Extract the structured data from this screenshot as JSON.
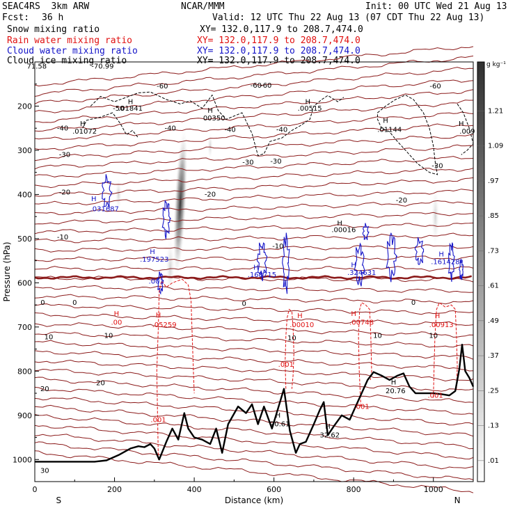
{
  "header": {
    "model": "SEAC4RS  3km ARW",
    "center": "NCAR/MMM",
    "init": "Init: 00 UTC Wed 21 Aug 13",
    "fcst_label": "Fcst:",
    "fcst_value": "36 h",
    "valid": "Valid: 12 UTC Thu 22 Aug 13 (07 CDT Thu 22 Aug 13)"
  },
  "fields": [
    {
      "name": "Snow mixing ratio",
      "xy": "XY= 132.0,117.9 to 208.7,474.0",
      "color": "#000000"
    },
    {
      "name": "Rain water mixing ratio",
      "xy": "XY= 132.0,117.9 to 208.7,474.0",
      "color": "#e01010"
    },
    {
      "name": "Cloud water mixing ratio",
      "xy": "XY= 132.0,117.9 to 208.7,474.0",
      "color": "#1414c8"
    },
    {
      "name": "Cloud ice mixing ratio",
      "xy": "XY= 132.0,117.9 to 208.7,474.0",
      "color": "#000000"
    }
  ],
  "chart_data": {
    "type": "cross-section",
    "xlabel": "Distance (km)",
    "ylabel": "Pressure (hPa)",
    "xlim": [
      0,
      1100
    ],
    "ylim": [
      1050,
      100
    ],
    "x_ticks": [
      0,
      200,
      400,
      600,
      800,
      1000
    ],
    "y_ticks": [
      200,
      300,
      400,
      500,
      600,
      700,
      800,
      900,
      1000
    ],
    "left_end": "S",
    "right_end": "N",
    "colorbar": {
      "unit": "g kg⁻¹",
      "levels": [
        "1.21",
        "1.09",
        ".97",
        ".85",
        ".73",
        ".61",
        ".49",
        ".37",
        ".25",
        ".13",
        ".01"
      ]
    },
    "temperature_contours": [
      {
        "label": "-70.99",
        "p": 103
      },
      {
        "label": "-60",
        "p": 143
      },
      {
        "label": "-50",
        "p": 177
      },
      {
        "label": "-40",
        "p": 225
      },
      {
        "label": "-30",
        "p": 275
      },
      {
        "label": "-20",
        "p": 375
      },
      {
        "label": "-10",
        "p": 473
      },
      {
        "label": "0",
        "p": 590
      },
      {
        "label": "10",
        "p": 690
      },
      {
        "label": "20",
        "p": 790
      }
    ],
    "annotations": [
      {
        "label": "71.58",
        "x": 5,
        "p": 115,
        "color": "#000000"
      },
      {
        "label": "-70.99",
        "x": 170,
        "p": 115,
        "color": "#000000"
      },
      {
        "label": "H",
        "x": 240,
        "p": 195,
        "color": "#000000"
      },
      {
        "label": ".01841",
        "x": 240,
        "p": 210,
        "color": "#000000"
      },
      {
        "label": "-50",
        "x": 210,
        "p": 210,
        "color": "#000000"
      },
      {
        "label": "-60",
        "x": 320,
        "p": 160,
        "color": "#000000"
      },
      {
        "label": "-60",
        "x": 555,
        "p": 158,
        "color": "#000000"
      },
      {
        "label": "-60",
        "x": 580,
        "p": 158,
        "color": "#000000"
      },
      {
        "label": "-60",
        "x": 1005,
        "p": 160,
        "color": "#000000"
      },
      {
        "label": "H",
        "x": 440,
        "p": 215,
        "color": "#000000"
      },
      {
        "label": "00350",
        "x": 450,
        "p": 232,
        "color": "#000000"
      },
      {
        "label": "H",
        "x": 685,
        "p": 195,
        "color": "#000000"
      },
      {
        "label": ".00515",
        "x": 690,
        "p": 210,
        "color": "#000000"
      },
      {
        "label": "H",
        "x": 120,
        "p": 245,
        "color": "#000000"
      },
      {
        "label": ".01072",
        "x": 125,
        "p": 262,
        "color": "#000000"
      },
      {
        "label": "-40",
        "x": 70,
        "p": 255,
        "color": "#000000"
      },
      {
        "label": "-40",
        "x": 340,
        "p": 255,
        "color": "#000000"
      },
      {
        "label": "-40",
        "x": 490,
        "p": 258,
        "color": "#000000"
      },
      {
        "label": "-40",
        "x": 620,
        "p": 258,
        "color": "#000000"
      },
      {
        "label": "H",
        "x": 880,
        "p": 238,
        "color": "#000000"
      },
      {
        "label": ".01144",
        "x": 890,
        "p": 258,
        "color": "#000000"
      },
      {
        "label": "H",
        "x": 1070,
        "p": 245,
        "color": "#000000"
      },
      {
        "label": ".009",
        "x": 1085,
        "p": 262,
        "color": "#000000"
      },
      {
        "label": "-30",
        "x": 75,
        "p": 315,
        "color": "#000000"
      },
      {
        "label": "-30",
        "x": 535,
        "p": 332,
        "color": "#000000"
      },
      {
        "label": "-30",
        "x": 605,
        "p": 330,
        "color": "#000000"
      },
      {
        "label": "-30",
        "x": 1010,
        "p": 340,
        "color": "#000000"
      },
      {
        "label": "-20",
        "x": 75,
        "p": 400,
        "color": "#000000"
      },
      {
        "label": "-20",
        "x": 440,
        "p": 405,
        "color": "#000000"
      },
      {
        "label": "-20",
        "x": 920,
        "p": 418,
        "color": "#000000"
      },
      {
        "label": "H",
        "x": 148,
        "p": 415,
        "color": "#1414c8"
      },
      {
        "label": ".031687",
        "x": 175,
        "p": 438,
        "color": "#1414c8"
      },
      {
        "label": "H",
        "x": 765,
        "p": 470,
        "color": "#000000"
      },
      {
        "label": ".00016",
        "x": 775,
        "p": 485,
        "color": "#000000"
      },
      {
        "label": "-10",
        "x": 70,
        "p": 502,
        "color": "#000000"
      },
      {
        "label": "-10",
        "x": 610,
        "p": 522,
        "color": "#000000"
      },
      {
        "label": "H",
        "x": 295,
        "p": 535,
        "color": "#1414c8"
      },
      {
        "label": ".197523",
        "x": 300,
        "p": 552,
        "color": "#1414c8"
      },
      {
        "label": "H",
        "x": 555,
        "p": 570,
        "color": "#1414c8"
      },
      {
        "label": ".168715",
        "x": 570,
        "p": 587,
        "color": "#1414c8"
      },
      {
        "label": "H",
        "x": 800,
        "p": 565,
        "color": "#1414c8"
      },
      {
        "label": ".324631",
        "x": 820,
        "p": 582,
        "color": "#1414c8"
      },
      {
        "label": "H",
        "x": 1020,
        "p": 540,
        "color": "#1414c8"
      },
      {
        "label": ".161428",
        "x": 1030,
        "p": 558,
        "color": "#1414c8"
      },
      {
        "label": ".001",
        "x": 305,
        "p": 602,
        "color": "#1414c8"
      },
      {
        "label": "0",
        "x": 20,
        "p": 650,
        "color": "#000000"
      },
      {
        "label": "0",
        "x": 100,
        "p": 650,
        "color": "#000000"
      },
      {
        "label": "0",
        "x": 525,
        "p": 652,
        "color": "#000000"
      },
      {
        "label": "0",
        "x": 950,
        "p": 650,
        "color": "#000000"
      },
      {
        "label": "H",
        "x": 205,
        "p": 675,
        "color": "#e01010"
      },
      {
        "label": ".00",
        "x": 205,
        "p": 695,
        "color": "#e01010"
      },
      {
        "label": "H",
        "x": 310,
        "p": 678,
        "color": "#e01010"
      },
      {
        "label": ".05259",
        "x": 325,
        "p": 700,
        "color": "#e01010"
      },
      {
        "label": "H",
        "x": 665,
        "p": 680,
        "color": "#e01010"
      },
      {
        "label": ".00010",
        "x": 670,
        "p": 700,
        "color": "#e01010"
      },
      {
        "label": "H",
        "x": 800,
        "p": 675,
        "color": "#e01010"
      },
      {
        "label": ".00748",
        "x": 820,
        "p": 695,
        "color": "#e01010"
      },
      {
        "label": "H",
        "x": 1010,
        "p": 680,
        "color": "#e01010"
      },
      {
        "label": ".00913",
        "x": 1020,
        "p": 700,
        "color": "#e01010"
      },
      {
        "label": "10",
        "x": 35,
        "p": 728,
        "color": "#000000"
      },
      {
        "label": "10",
        "x": 185,
        "p": 725,
        "color": "#000000"
      },
      {
        "label": "10",
        "x": 645,
        "p": 730,
        "color": "#000000"
      },
      {
        "label": "10",
        "x": 860,
        "p": 725,
        "color": "#000000"
      },
      {
        "label": "10",
        "x": 1000,
        "p": 725,
        "color": "#000000"
      },
      {
        "label": ".001",
        "x": 630,
        "p": 790,
        "color": "#e01010"
      },
      {
        "label": "20",
        "x": 165,
        "p": 832,
        "color": "#000000"
      },
      {
        "label": "20",
        "x": 25,
        "p": 845,
        "color": "#000000"
      },
      {
        "label": "H",
        "x": 900,
        "p": 830,
        "color": "#000000"
      },
      {
        "label": "20.76",
        "x": 905,
        "p": 850,
        "color": "#000000"
      },
      {
        "label": ".001",
        "x": 1005,
        "p": 860,
        "color": "#e01010"
      },
      {
        "label": ".001",
        "x": 820,
        "p": 885,
        "color": "#e01010"
      },
      {
        "label": ".001",
        "x": 310,
        "p": 915,
        "color": "#e01010"
      },
      {
        "label": "H",
        "x": 610,
        "p": 905,
        "color": "#000000"
      },
      {
        "label": "20.61",
        "x": 615,
        "p": 925,
        "color": "#000000"
      },
      {
        "label": "H",
        "x": 735,
        "p": 930,
        "color": "#000000"
      },
      {
        "label": "32.62",
        "x": 740,
        "p": 950,
        "color": "#000000"
      },
      {
        "label": "30",
        "x": 25,
        "p": 1030,
        "color": "#000000"
      }
    ],
    "terrain_p": [
      [
        0,
        1005
      ],
      [
        150,
        1005
      ],
      [
        180,
        1002
      ],
      [
        210,
        990
      ],
      [
        240,
        975
      ],
      [
        260,
        970
      ],
      [
        275,
        972
      ],
      [
        290,
        965
      ],
      [
        300,
        975
      ],
      [
        312,
        1000
      ],
      [
        330,
        960
      ],
      [
        345,
        930
      ],
      [
        360,
        955
      ],
      [
        375,
        895
      ],
      [
        385,
        930
      ],
      [
        400,
        950
      ],
      [
        420,
        955
      ],
      [
        440,
        965
      ],
      [
        455,
        930
      ],
      [
        470,
        985
      ],
      [
        485,
        920
      ],
      [
        510,
        880
      ],
      [
        530,
        895
      ],
      [
        545,
        875
      ],
      [
        560,
        920
      ],
      [
        575,
        880
      ],
      [
        595,
        930
      ],
      [
        610,
        885
      ],
      [
        625,
        840
      ],
      [
        640,
        935
      ],
      [
        655,
        985
      ],
      [
        665,
        965
      ],
      [
        680,
        960
      ],
      [
        700,
        920
      ],
      [
        715,
        888
      ],
      [
        725,
        870
      ],
      [
        735,
        945
      ],
      [
        750,
        925
      ],
      [
        770,
        900
      ],
      [
        790,
        910
      ],
      [
        810,
        870
      ],
      [
        835,
        820
      ],
      [
        850,
        802
      ],
      [
        870,
        810
      ],
      [
        890,
        820
      ],
      [
        910,
        810
      ],
      [
        925,
        805
      ],
      [
        940,
        835
      ],
      [
        955,
        850
      ],
      [
        975,
        850
      ],
      [
        1000,
        850
      ],
      [
        1020,
        852
      ],
      [
        1040,
        855
      ],
      [
        1055,
        845
      ],
      [
        1065,
        795
      ],
      [
        1072,
        740
      ],
      [
        1080,
        800
      ],
      [
        1090,
        815
      ],
      [
        1100,
        835
      ]
    ]
  },
  "colors": {
    "temperature": "#8b1a1a",
    "rain": "#e01010",
    "cloud_water": "#1414c8",
    "snow": "#000000",
    "terrain": "#000000"
  }
}
